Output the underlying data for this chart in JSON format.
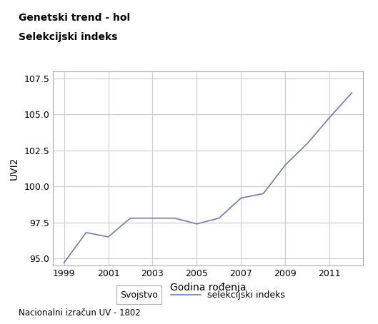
{
  "title_line1": "Genetski trend - hol",
  "title_line2": "Selekcijski indeks",
  "xlabel": "Godina rođenja",
  "ylabel": "UVI2",
  "footnote": "Nacionalni izračun UV - 1802",
  "legend_label1": "Svojstvo",
  "legend_label2": "selekcijski indeks",
  "line_color": "#6b7cb5",
  "background_color": "#ffffff",
  "plot_bg_color": "#ffffff",
  "grid_color": "#cccccc",
  "x": [
    1999,
    2000,
    2001,
    2002,
    2003,
    2004,
    2005,
    2006,
    2007,
    2008,
    2009,
    2010,
    2011,
    2012
  ],
  "y": [
    94.7,
    96.8,
    96.5,
    97.8,
    97.8,
    97.8,
    97.4,
    97.8,
    99.2,
    99.5,
    101.5,
    103.0,
    104.8,
    106.5
  ],
  "ylim": [
    94.5,
    108.0
  ],
  "xlim": [
    1998.5,
    2012.5
  ],
  "yticks": [
    95.0,
    97.5,
    100.0,
    102.5,
    105.0,
    107.5
  ],
  "xticks": [
    1999,
    2001,
    2003,
    2005,
    2007,
    2009,
    2011
  ]
}
